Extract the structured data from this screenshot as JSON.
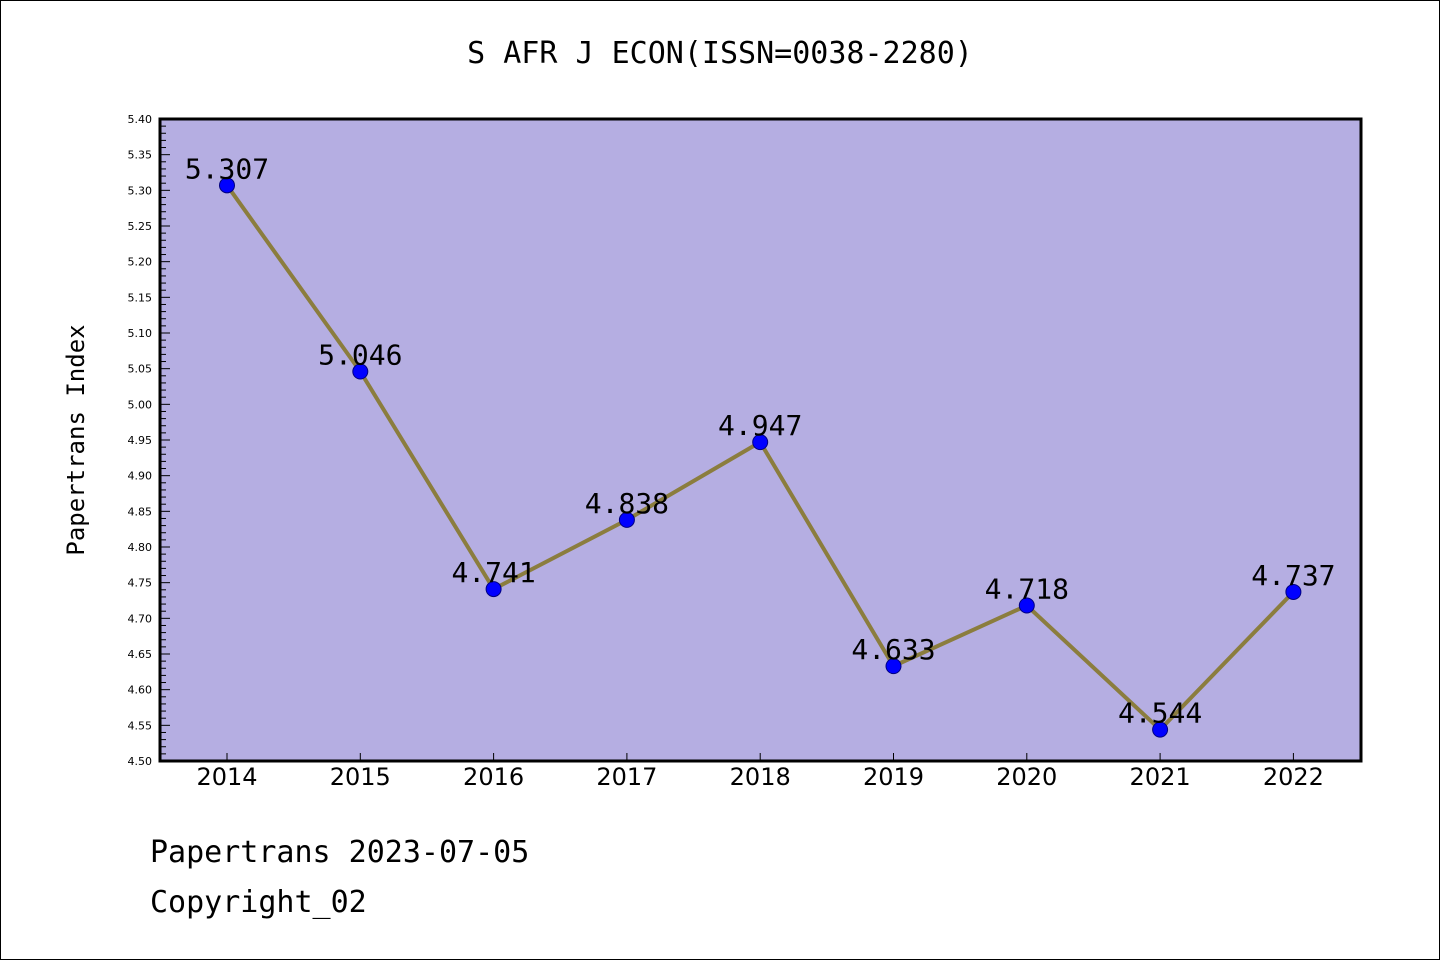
{
  "chart_data": {
    "type": "line",
    "title": "S AFR J ECON(ISSN=0038-2280)",
    "ylabel": "Papertrans Index",
    "xlabel": "",
    "categories": [
      "2014",
      "2015",
      "2016",
      "2017",
      "2018",
      "2019",
      "2020",
      "2021",
      "2022"
    ],
    "series": [
      {
        "values": [
          5.307,
          5.046,
          4.741,
          4.838,
          4.947,
          4.633,
          4.718,
          4.544,
          4.737
        ]
      }
    ],
    "data_labels": [
      "5.307",
      "5.046",
      "4.741",
      "4.838",
      "4.947",
      "4.633",
      "4.718",
      "4.544",
      "4.737"
    ],
    "ylim": [
      4.5,
      5.4
    ],
    "y_ticks": [
      "4.50",
      "4.55",
      "4.60",
      "4.65",
      "4.70",
      "4.75",
      "4.80",
      "4.85",
      "4.90",
      "4.95",
      "5.00",
      "5.05",
      "5.10",
      "5.15",
      "5.20",
      "5.25",
      "5.30",
      "5.35",
      "5.40"
    ],
    "grid": false,
    "legend": "none",
    "colors": {
      "plot_background": "#b5aee2",
      "line": "#8b7d3e",
      "marker": "#0000ff",
      "axis": "#000000"
    }
  },
  "footer": {
    "date_line": "Papertrans 2023-07-05",
    "copyright": "Copyright_02"
  }
}
